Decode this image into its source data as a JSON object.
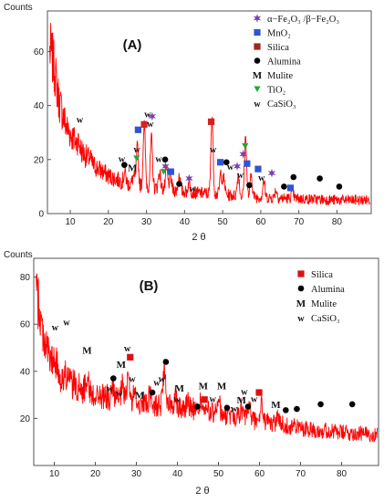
{
  "chart_data": [
    {
      "panel": "(A)",
      "type": "line",
      "xlabel": "2 θ",
      "ylabel": "Counts",
      "xlim": [
        4,
        89
      ],
      "ylim": [
        0,
        75
      ],
      "xticks": [
        10,
        20,
        30,
        40,
        50,
        60,
        70,
        80
      ],
      "yticks": [
        0,
        20,
        40,
        60
      ],
      "grid": false,
      "legend_position": "top-right",
      "colors": {
        "pattern": "#ff0000",
        "hematite": "#7b3fb0",
        "mno2": "#2f55d4",
        "silica": "#c00000",
        "alumina": "#000000",
        "tio2": "#22aa33",
        "mark": "#111111"
      },
      "series": [
        {
          "name": "",
          "profile": {
            "x": [
              5,
              6,
              7,
              9,
              12,
              16,
              20,
              25,
              30,
              40,
              50,
              60,
              70,
              80,
              89
            ],
            "y": [
              60,
              52,
              42,
              32,
              25,
              18,
              14,
              11,
              10,
              8,
              7,
              6,
              5.5,
              5,
              5
            ]
          }
        }
      ],
      "peaks": [
        {
          "x": 12.1,
          "h": 2
        },
        {
          "x": 15.2,
          "h": 1
        },
        {
          "x": 24.3,
          "h": 4
        },
        {
          "x": 26.6,
          "h": 3
        },
        {
          "x": 27.6,
          "h": 14
        },
        {
          "x": 29.4,
          "h": 23
        },
        {
          "x": 31.3,
          "h": 18
        },
        {
          "x": 33.4,
          "h": 6
        },
        {
          "x": 35.3,
          "h": 7
        },
        {
          "x": 36.3,
          "h": 5
        },
        {
          "x": 38.6,
          "h": 6
        },
        {
          "x": 41.2,
          "h": 4
        },
        {
          "x": 47.2,
          "h": 29
        },
        {
          "x": 49.5,
          "h": 8
        },
        {
          "x": 50.3,
          "h": 6
        },
        {
          "x": 54.1,
          "h": 8
        },
        {
          "x": 56.0,
          "h": 22
        },
        {
          "x": 57.5,
          "h": 8
        },
        {
          "x": 60.8,
          "h": 6
        },
        {
          "x": 64.0,
          "h": 3
        },
        {
          "x": 68.3,
          "h": 3
        }
      ],
      "legend": [
        {
          "symbol": "star",
          "color": "#7b3fb0",
          "label": "α−Fe₂O₃ /β−Fe₂O₃"
        },
        {
          "symbol": "square",
          "color": "#2f55d4",
          "label": "MnO₂"
        },
        {
          "symbol": "square",
          "color": "#a02818",
          "label": "Silica"
        },
        {
          "symbol": "circle",
          "color": "#000000",
          "label": "Alumina"
        },
        {
          "symbol": "M",
          "color": "#111111",
          "label": "Mulite"
        },
        {
          "symbol": "triangle",
          "color": "#22aa33",
          "label": "TiO₂"
        },
        {
          "symbol": "w",
          "color": "#111111",
          "label": "CaSiO₃"
        }
      ],
      "markers": [
        {
          "phase": "CaSiO3",
          "symbol": "w",
          "x": 12.5,
          "y": 35
        },
        {
          "phase": "CaSiO3",
          "symbol": "w",
          "x": 23.5,
          "y": 20.5
        },
        {
          "phase": "Alumina",
          "symbol": "circle",
          "x": 24.2,
          "y": 18
        },
        {
          "phase": "Mulite",
          "symbol": "M",
          "x": 26.3,
          "y": 17
        },
        {
          "phase": "TiO2",
          "symbol": "triangle",
          "x": 27.4,
          "y": 20.5
        },
        {
          "phase": "CaSiO3",
          "symbol": "w",
          "x": 27.5,
          "y": 24
        },
        {
          "phase": "MnO2",
          "symbol": "square",
          "x": 27.8,
          "y": 31
        },
        {
          "phase": "Silica",
          "symbol": "square",
          "x": 29.4,
          "y": 33
        },
        {
          "phase": "CaSiO3",
          "symbol": "w",
          "x": 30.3,
          "y": 37
        },
        {
          "phase": "Fe2O3",
          "symbol": "star",
          "x": 31.5,
          "y": 36
        },
        {
          "phase": "CaSiO3",
          "symbol": "w",
          "x": 31.0,
          "y": 33.5
        },
        {
          "phase": "CaSiO3",
          "symbol": "w",
          "x": 33.2,
          "y": 20.5
        },
        {
          "phase": "Alumina",
          "symbol": "circle",
          "x": 34.9,
          "y": 20
        },
        {
          "phase": "Fe2O3",
          "symbol": "star",
          "x": 35.0,
          "y": 17.5
        },
        {
          "phase": "TiO2",
          "symbol": "triangle",
          "x": 34.5,
          "y": 15.5
        },
        {
          "phase": "MnO2",
          "symbol": "square",
          "x": 36.4,
          "y": 15.5
        },
        {
          "phase": "Alumina",
          "symbol": "circle",
          "x": 38.6,
          "y": 11
        },
        {
          "phase": "Fe2O3",
          "symbol": "star",
          "x": 41.2,
          "y": 13
        },
        {
          "phase": "CaSiO3",
          "symbol": "w",
          "x": 42.1,
          "y": 9.5
        },
        {
          "phase": "Silica",
          "symbol": "square",
          "x": 47.0,
          "y": 34
        },
        {
          "phase": "CaSiO3",
          "symbol": "w",
          "x": 47.5,
          "y": 24
        },
        {
          "phase": "MnO2",
          "symbol": "square",
          "x": 49.4,
          "y": 19
        },
        {
          "phase": "Alumina",
          "symbol": "circle",
          "x": 51.0,
          "y": 19
        },
        {
          "phase": "CaSiO3",
          "symbol": "w",
          "x": 52.0,
          "y": 17.5
        },
        {
          "phase": "Fe2O3",
          "symbol": "star",
          "x": 53.8,
          "y": 17.5
        },
        {
          "phase": "CaSiO3",
          "symbol": "w",
          "x": 54.6,
          "y": 14.5
        },
        {
          "phase": "TiO2",
          "symbol": "triangle",
          "x": 55.9,
          "y": 25
        },
        {
          "phase": "Fe2O3",
          "symbol": "star",
          "x": 55.4,
          "y": 22
        },
        {
          "phase": "MnO2",
          "symbol": "square",
          "x": 56.4,
          "y": 18.5
        },
        {
          "phase": "Alumina",
          "symbol": "circle",
          "x": 57.0,
          "y": 10.5
        },
        {
          "phase": "MnO2",
          "symbol": "square",
          "x": 59.3,
          "y": 16.5
        },
        {
          "phase": "CaSiO3",
          "symbol": "w",
          "x": 60.2,
          "y": 13.5
        },
        {
          "phase": "Fe2O3",
          "symbol": "star",
          "x": 62.9,
          "y": 15
        },
        {
          "phase": "Alumina",
          "symbol": "circle",
          "x": 66.1,
          "y": 10
        },
        {
          "phase": "MnO2",
          "symbol": "square",
          "x": 67.8,
          "y": 9.5
        },
        {
          "phase": "Alumina",
          "symbol": "circle",
          "x": 68.6,
          "y": 13.5
        },
        {
          "phase": "Alumina",
          "symbol": "circle",
          "x": 75.5,
          "y": 13
        },
        {
          "phase": "Alumina",
          "symbol": "circle",
          "x": 80.6,
          "y": 10
        }
      ]
    },
    {
      "panel": "(B)",
      "type": "line",
      "xlabel": "2 θ",
      "ylabel": "Counts",
      "xlim": [
        5,
        89
      ],
      "ylim": [
        0,
        88
      ],
      "xticks": [
        10,
        20,
        30,
        40,
        50,
        60,
        70,
        80
      ],
      "yticks": [
        20,
        40,
        60,
        80
      ],
      "grid": false,
      "legend_position": "top-right",
      "colors": {
        "pattern": "#ff0000",
        "silica": "#dd1111",
        "alumina": "#000000",
        "mark": "#111111"
      },
      "series": [
        {
          "name": "",
          "profile": {
            "x": [
              5,
              6,
              7,
              9,
              12,
              16,
              20,
              25,
              30,
              35,
              40,
              50,
              60,
              70,
              80,
              89
            ],
            "y": [
              80,
              70,
              58,
              45,
              37,
              33,
              30,
              28,
              26.5,
              26,
              25,
              22,
              19,
              16,
              14,
              13
            ]
          }
        }
      ],
      "peaks": [
        {
          "x": 10.3,
          "h": 3
        },
        {
          "x": 13.0,
          "h": 3
        },
        {
          "x": 18.0,
          "h": 8
        },
        {
          "x": 24.3,
          "h": 4
        },
        {
          "x": 26.6,
          "h": 6
        },
        {
          "x": 28.0,
          "h": 12
        },
        {
          "x": 29.5,
          "h": 4
        },
        {
          "x": 33.2,
          "h": 3
        },
        {
          "x": 36.8,
          "h": 15
        },
        {
          "x": 39.5,
          "h": 6
        },
        {
          "x": 42.5,
          "h": 4
        },
        {
          "x": 45.7,
          "h": 4
        },
        {
          "x": 50.0,
          "h": 7
        },
        {
          "x": 55.5,
          "h": 4
        },
        {
          "x": 57.5,
          "h": 6
        },
        {
          "x": 60.5,
          "h": 7
        },
        {
          "x": 64.5,
          "h": 4
        }
      ],
      "legend": [
        {
          "symbol": "square",
          "color": "#dd1111",
          "label": "Silica"
        },
        {
          "symbol": "circle",
          "color": "#000000",
          "label": "Alumina"
        },
        {
          "symbol": "M",
          "color": "#111111",
          "label": "Mulite"
        },
        {
          "symbol": "w",
          "color": "#111111",
          "label": "CaSiO₃"
        }
      ],
      "markers": [
        {
          "phase": "CaSiO3",
          "symbol": "w",
          "x": 10.2,
          "y": 59
        },
        {
          "phase": "CaSiO3",
          "symbol": "w",
          "x": 13.0,
          "y": 61
        },
        {
          "phase": "Mulite",
          "symbol": "M",
          "x": 18.0,
          "y": 49
        },
        {
          "phase": "CaSiO3",
          "symbol": "w",
          "x": 23.5,
          "y": 33
        },
        {
          "phase": "Alumina",
          "symbol": "circle",
          "x": 24.4,
          "y": 37
        },
        {
          "phase": "CaSiO3",
          "symbol": "w",
          "x": 25.8,
          "y": 31
        },
        {
          "phase": "Mulite",
          "symbol": "M",
          "x": 26.3,
          "y": 43
        },
        {
          "phase": "CaSiO3",
          "symbol": "w",
          "x": 27.8,
          "y": 50
        },
        {
          "phase": "Silica",
          "symbol": "square",
          "x": 28.5,
          "y": 46
        },
        {
          "phase": "CaSiO3",
          "symbol": "w",
          "x": 29.0,
          "y": 37
        },
        {
          "phase": "Mulite",
          "symbol": "M",
          "x": 30.8,
          "y": 30
        },
        {
          "phase": "Alumina",
          "symbol": "circle",
          "x": 33.9,
          "y": 31
        },
        {
          "phase": "CaSiO3",
          "symbol": "w",
          "x": 35.0,
          "y": 35.5
        },
        {
          "phase": "Alumina",
          "symbol": "circle",
          "x": 37.2,
          "y": 44
        },
        {
          "phase": "CaSiO3",
          "symbol": "w",
          "x": 36.2,
          "y": 37
        },
        {
          "phase": "Mulite",
          "symbol": "M",
          "x": 40.5,
          "y": 33
        },
        {
          "phase": "CaSiO3",
          "symbol": "w",
          "x": 39.9,
          "y": 28.5
        },
        {
          "phase": "Alumina",
          "symbol": "circle",
          "x": 44.9,
          "y": 25
        },
        {
          "phase": "Silica",
          "symbol": "square",
          "x": 46.6,
          "y": 28
        },
        {
          "phase": "Mulite",
          "symbol": "M",
          "x": 46.3,
          "y": 34
        },
        {
          "phase": "CaSiO3",
          "symbol": "w",
          "x": 48.6,
          "y": 28.5
        },
        {
          "phase": "Mulite",
          "symbol": "M",
          "x": 50.8,
          "y": 34
        },
        {
          "phase": "Alumina",
          "symbol": "circle",
          "x": 52.1,
          "y": 24.5
        },
        {
          "phase": "CaSiO3",
          "symbol": "w",
          "x": 53.8,
          "y": 24.5
        },
        {
          "phase": "Mulite",
          "symbol": "M",
          "x": 55.6,
          "y": 28
        },
        {
          "phase": "CaSiO3",
          "symbol": "w",
          "x": 56.3,
          "y": 31.5
        },
        {
          "phase": "Alumina",
          "symbol": "circle",
          "x": 57.2,
          "y": 25
        },
        {
          "phase": "Silica",
          "symbol": "square",
          "x": 59.9,
          "y": 31
        },
        {
          "phase": "CaSiO3",
          "symbol": "w",
          "x": 58.7,
          "y": 28.5
        },
        {
          "phase": "Mulite",
          "symbol": "M",
          "x": 64.0,
          "y": 26
        },
        {
          "phase": "Alumina",
          "symbol": "circle",
          "x": 66.4,
          "y": 23.5
        },
        {
          "phase": "Alumina",
          "symbol": "circle",
          "x": 69.1,
          "y": 24
        },
        {
          "phase": "Alumina",
          "symbol": "circle",
          "x": 74.9,
          "y": 26
        },
        {
          "phase": "Alumina",
          "symbol": "circle",
          "x": 82.6,
          "y": 26
        }
      ]
    }
  ]
}
